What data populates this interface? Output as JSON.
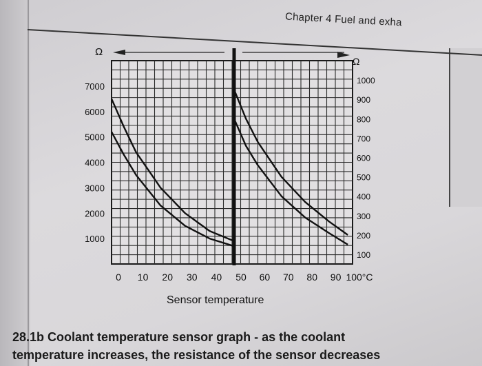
{
  "page": {
    "header": "Chapter 4  Fuel and exha",
    "caption_line1": "28.1b Coolant temperature sensor graph - as the coolant",
    "caption_line2": "temperature increases, the resistance of the sensor decreases"
  },
  "chart_data": {
    "type": "line",
    "title": "",
    "xlabel": "Sensor temperature",
    "x_tick_labels": [
      "0",
      "10",
      "20",
      "30",
      "40",
      "50",
      "60",
      "70",
      "80",
      "90",
      "100°C"
    ],
    "left_panel": {
      "unit_label": "Ω",
      "xlim": [
        0,
        50
      ],
      "ylim": [
        0,
        8000
      ],
      "yticks": [
        1000,
        2000,
        3000,
        4000,
        5000,
        6000,
        7000
      ],
      "series": [
        {
          "x": [
            0,
            5,
            10,
            20,
            30,
            40,
            50
          ],
          "y": [
            6500,
            5400,
            4400,
            3000,
            2000,
            1300,
            900
          ]
        },
        {
          "x": [
            0,
            5,
            10,
            20,
            30,
            40,
            50
          ],
          "y": [
            5200,
            4300,
            3500,
            2300,
            1500,
            1000,
            700
          ]
        }
      ]
    },
    "right_panel": {
      "unit_label": "Ω",
      "xlim": [
        50,
        100
      ],
      "ylim": [
        50,
        1100
      ],
      "yticks": [
        100,
        200,
        300,
        400,
        500,
        600,
        700,
        800,
        900,
        1000
      ],
      "series": [
        {
          "x": [
            50,
            55,
            60,
            70,
            80,
            90,
            98
          ],
          "y": [
            950,
            800,
            680,
            500,
            370,
            270,
            200
          ]
        },
        {
          "x": [
            50,
            55,
            60,
            70,
            80,
            90,
            98
          ],
          "y": [
            800,
            660,
            560,
            400,
            290,
            210,
            150
          ]
        }
      ]
    },
    "grid": true
  }
}
